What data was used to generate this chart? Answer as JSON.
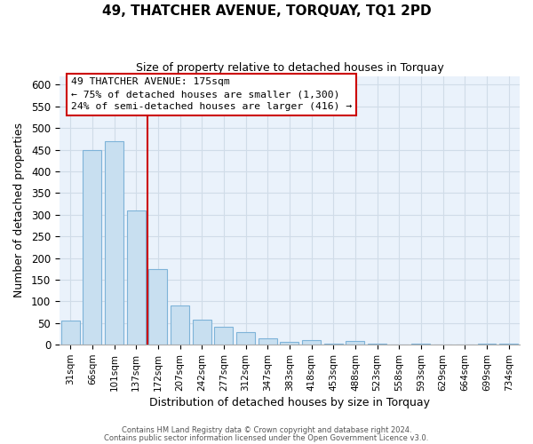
{
  "title": "49, THATCHER AVENUE, TORQUAY, TQ1 2PD",
  "subtitle": "Size of property relative to detached houses in Torquay",
  "xlabel": "Distribution of detached houses by size in Torquay",
  "ylabel": "Number of detached properties",
  "bar_labels": [
    "31sqm",
    "66sqm",
    "101sqm",
    "137sqm",
    "172sqm",
    "207sqm",
    "242sqm",
    "277sqm",
    "312sqm",
    "347sqm",
    "383sqm",
    "418sqm",
    "453sqm",
    "488sqm",
    "523sqm",
    "558sqm",
    "593sqm",
    "629sqm",
    "664sqm",
    "699sqm",
    "734sqm"
  ],
  "bar_values": [
    55,
    450,
    470,
    310,
    175,
    90,
    58,
    42,
    30,
    15,
    7,
    10,
    3,
    8,
    3,
    0,
    3,
    0,
    0,
    2,
    3
  ],
  "bar_face_color": "#c8dff0",
  "bar_edge_color": "#7eb3d8",
  "vline_color": "#cc0000",
  "ylim": [
    0,
    620
  ],
  "yticks": [
    0,
    50,
    100,
    150,
    200,
    250,
    300,
    350,
    400,
    450,
    500,
    550,
    600
  ],
  "annotation_title": "49 THATCHER AVENUE: 175sqm",
  "annotation_line1": "← 75% of detached houses are smaller (1,300)",
  "annotation_line2": "24% of semi-detached houses are larger (416) →",
  "footer1": "Contains HM Land Registry data © Crown copyright and database right 2024.",
  "footer2": "Contains public sector information licensed under the Open Government Licence v3.0.",
  "grid_color": "#d0dce8",
  "plot_bg_color": "#eaf2fb",
  "fig_bg_color": "#ffffff"
}
